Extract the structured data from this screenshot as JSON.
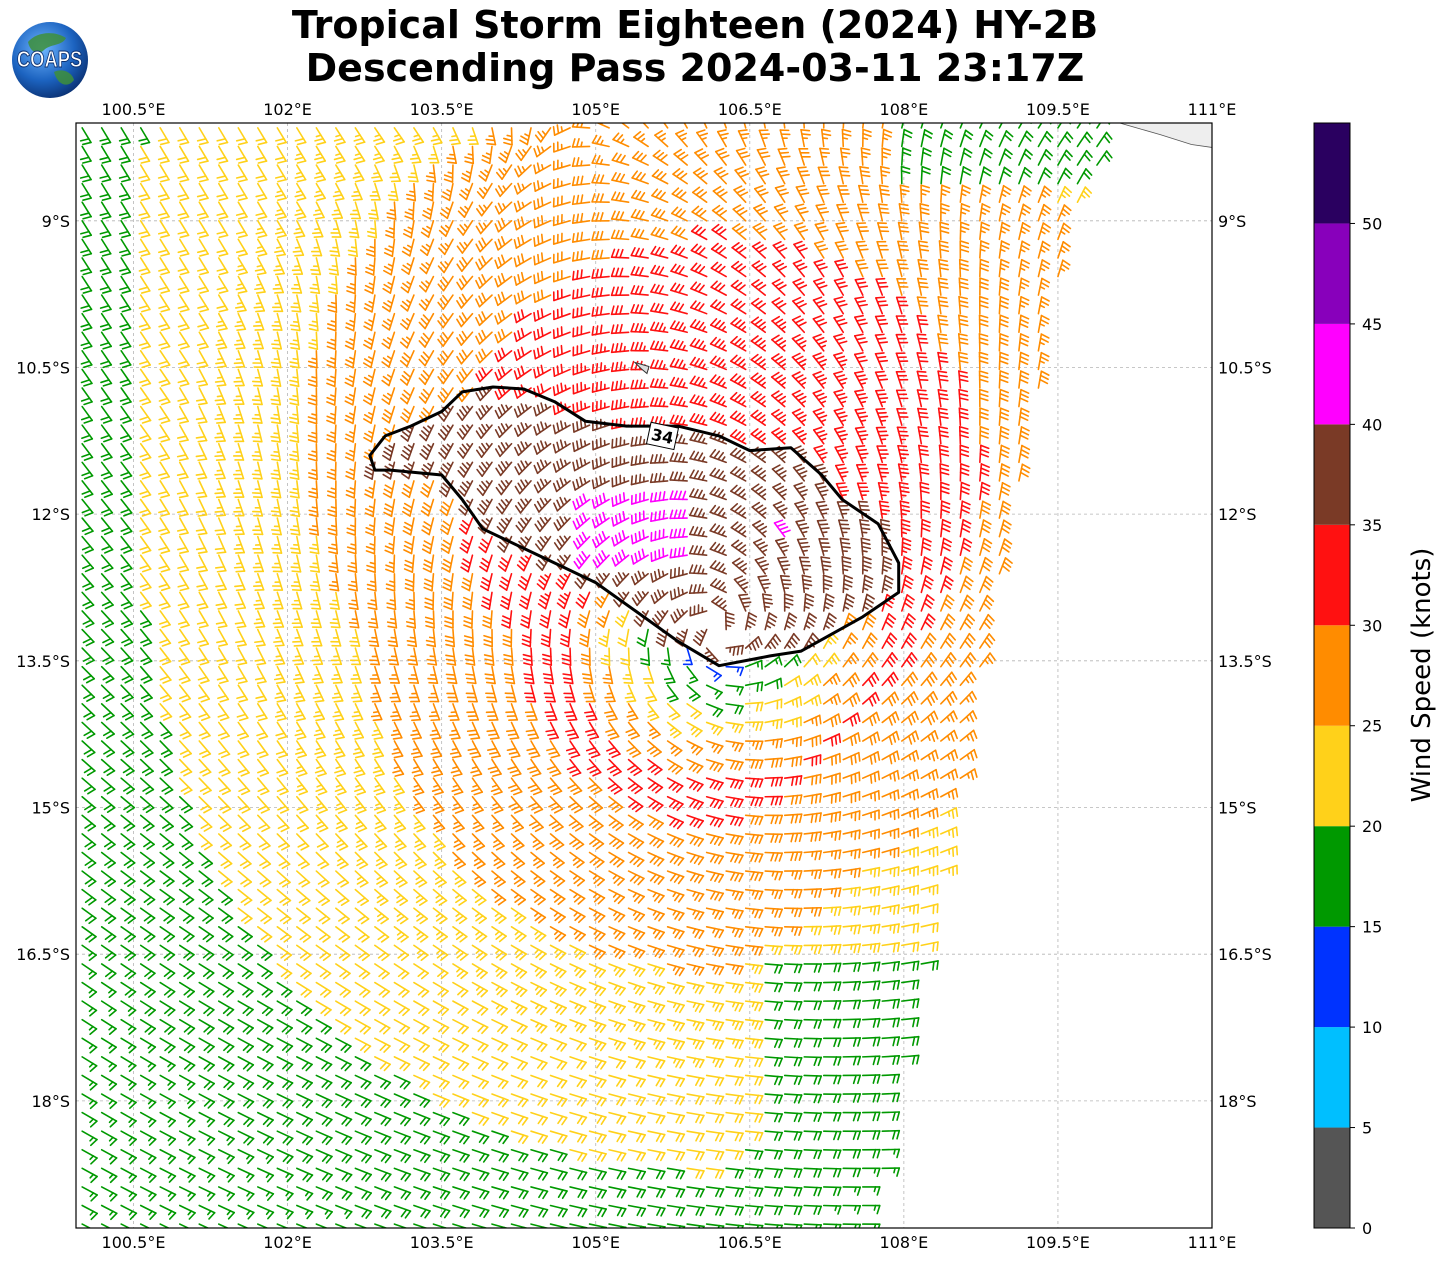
{
  "title": {
    "line1": "Tropical Storm Eighteen (2024) HY-2B",
    "line2": "Descending Pass 2024-03-11 23:17Z"
  },
  "logo": {
    "text": "COAPS",
    "icon": "globe-icon"
  },
  "map": {
    "projection": "plate-carree",
    "lon_range_deg": [
      99.94,
      111.0
    ],
    "lat_range_deg": [
      -19.3,
      -8.0
    ],
    "lon_ticks": [
      "100.5°E",
      "102°E",
      "103.5°E",
      "105°E",
      "106.5°E",
      "108°E",
      "109.5°E",
      "111°E"
    ],
    "lat_ticks": [
      "9°S",
      "10.5°S",
      "12°S",
      "13.5°S",
      "15°S",
      "16.5°S",
      "18°S"
    ],
    "grid": true,
    "storm_center": {
      "lon": 106.2,
      "lat": -13.2
    },
    "contour_34kt": {
      "label": "34",
      "path_lonlat": [
        [
          105.3,
          -11.1
        ],
        [
          105.8,
          -11.1
        ],
        [
          106.2,
          -11.2
        ],
        [
          106.5,
          -11.35
        ],
        [
          106.9,
          -11.32
        ],
        [
          107.2,
          -11.6
        ],
        [
          107.4,
          -11.85
        ],
        [
          107.75,
          -12.1
        ],
        [
          107.95,
          -12.5
        ],
        [
          107.95,
          -12.8
        ],
        [
          107.6,
          -13.05
        ],
        [
          107.0,
          -13.4
        ],
        [
          106.7,
          -13.45
        ],
        [
          106.2,
          -13.55
        ],
        [
          105.8,
          -13.3
        ],
        [
          105.4,
          -13.0
        ],
        [
          105.0,
          -12.7
        ],
        [
          104.7,
          -12.55
        ],
        [
          104.3,
          -12.35
        ],
        [
          103.9,
          -12.15
        ],
        [
          103.7,
          -11.85
        ],
        [
          103.5,
          -11.6
        ],
        [
          103.0,
          -11.55
        ],
        [
          102.85,
          -11.55
        ],
        [
          102.8,
          -11.4
        ],
        [
          102.95,
          -11.2
        ],
        [
          103.2,
          -11.1
        ],
        [
          103.5,
          -10.95
        ],
        [
          103.7,
          -10.75
        ],
        [
          104.0,
          -10.7
        ],
        [
          104.3,
          -10.72
        ],
        [
          104.6,
          -10.85
        ],
        [
          104.9,
          -11.05
        ],
        [
          105.3,
          -11.1
        ]
      ]
    },
    "coastline_lonlat": [
      [
        110.1,
        -8.0
      ],
      [
        110.5,
        -8.12
      ],
      [
        110.8,
        -8.22
      ],
      [
        111.0,
        -8.25
      ]
    ]
  },
  "colorbar": {
    "label": "Wind Speed (knots)",
    "bounds": [
      0,
      5,
      10,
      15,
      20,
      25,
      30,
      35,
      40,
      45,
      50,
      55
    ],
    "tick_labels": [
      "0",
      "5",
      "10",
      "15",
      "20",
      "25",
      "30",
      "35",
      "40",
      "45",
      "50"
    ],
    "colors": [
      "#555555",
      "#00bfff",
      "#0033ff",
      "#009900",
      "#ffd11a",
      "#ff8c00",
      "#ff1111",
      "#7a3a26",
      "#ff00ff",
      "#8800bb",
      "#2a0060"
    ]
  }
}
